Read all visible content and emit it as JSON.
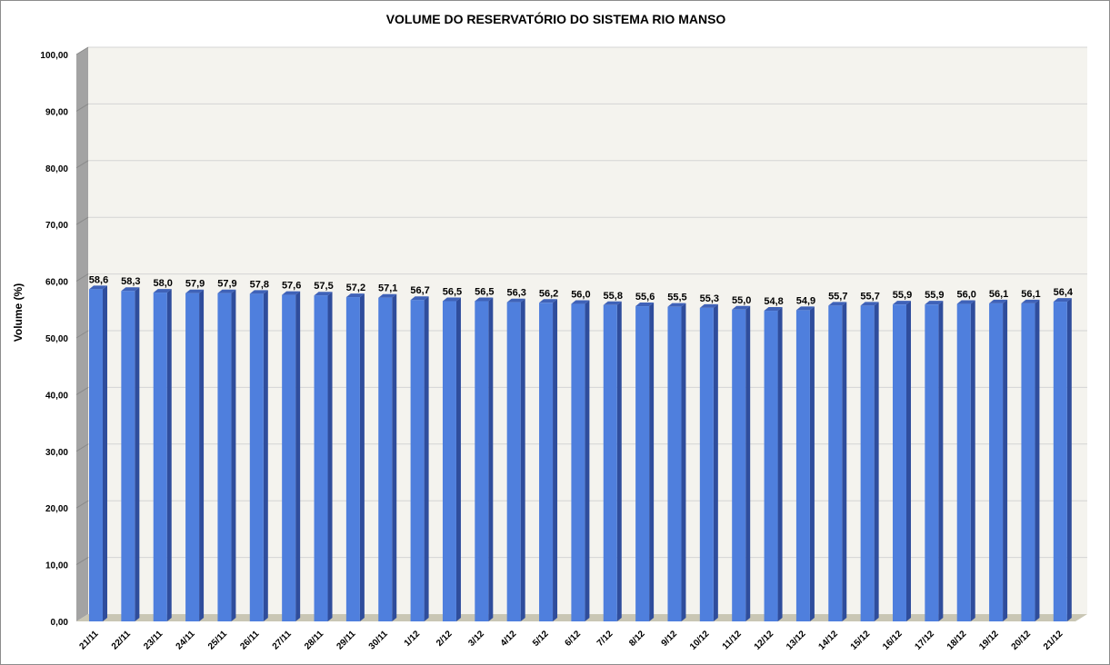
{
  "chart_data": {
    "type": "bar",
    "title": "VOLUME DO RESERVATÓRIO DO SISTEMA RIO MANSO",
    "xlabel": "",
    "ylabel": "Volume (%)",
    "ylim": [
      0,
      100
    ],
    "y_ticks": [
      "0,00",
      "10,00",
      "20,00",
      "30,00",
      "40,00",
      "50,00",
      "60,00",
      "70,00",
      "80,00",
      "90,00",
      "100,00"
    ],
    "grid": true,
    "legend": "none",
    "bar_color": "#4F7FDD",
    "categories": [
      "21/11",
      "22/11",
      "23/11",
      "24/11",
      "25/11",
      "26/11",
      "27/11",
      "28/11",
      "29/11",
      "30/11",
      "1/12",
      "2/12",
      "3/12",
      "4/12",
      "5/12",
      "6/12",
      "7/12",
      "8/12",
      "9/12",
      "10/12",
      "11/12",
      "12/12",
      "13/12",
      "14/12",
      "15/12",
      "16/12",
      "17/12",
      "18/12",
      "19/12",
      "20/12",
      "21/12"
    ],
    "values": [
      58.6,
      58.3,
      58.0,
      57.9,
      57.9,
      57.8,
      57.6,
      57.5,
      57.2,
      57.1,
      56.7,
      56.5,
      56.5,
      56.3,
      56.2,
      56.0,
      55.8,
      55.6,
      55.5,
      55.3,
      55.0,
      54.8,
      54.9,
      55.7,
      55.7,
      55.9,
      55.9,
      56.0,
      56.1,
      56.1,
      56.4
    ],
    "data_labels": [
      "58,6",
      "58,3",
      "58,0",
      "57,9",
      "57,9",
      "57,8",
      "57,6",
      "57,5",
      "57,2",
      "57,1",
      "56,7",
      "56,5",
      "56,5",
      "56,3",
      "56,2",
      "56,0",
      "55,8",
      "55,6",
      "55,5",
      "55,3",
      "55,0",
      "54,8",
      "54,9",
      "55,7",
      "55,7",
      "55,9",
      "55,9",
      "56,0",
      "56,1",
      "56,1",
      "56,4"
    ]
  }
}
